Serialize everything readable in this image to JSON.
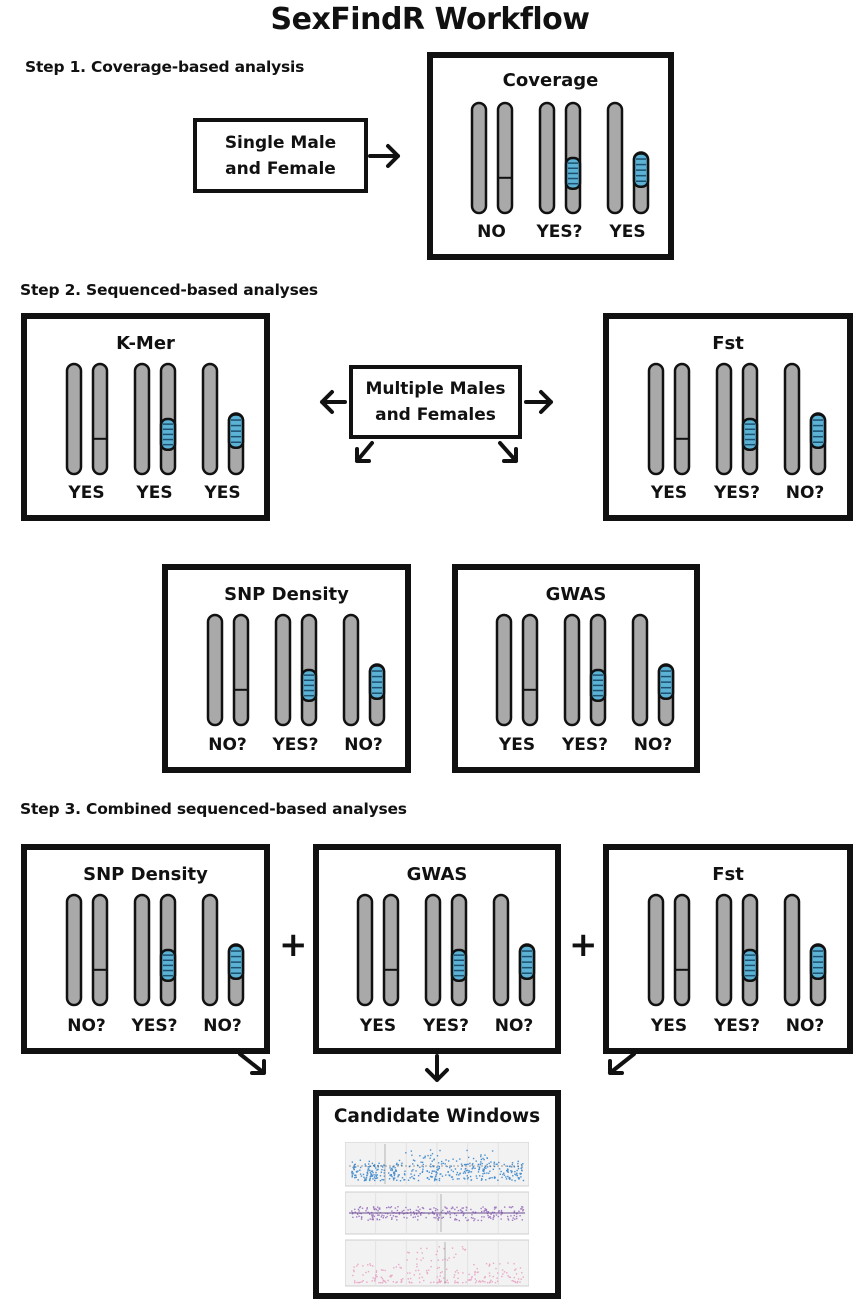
{
  "title": "SexFindR Workflow",
  "steps": {
    "step1": "Step 1. Coverage-based analysis",
    "step2": "Step 2. Sequenced-based analyses",
    "step3": "Step 3. Combined sequenced-based analyses"
  },
  "inputs": {
    "single": "Single Male and Female",
    "multiple": "Multiple Males and Females"
  },
  "panels": {
    "coverage": {
      "title": "Coverage",
      "verdicts": [
        "NO",
        "YES?",
        "YES"
      ]
    },
    "kmer": {
      "title": "K-Mer",
      "verdicts": [
        "YES",
        "YES",
        "YES"
      ]
    },
    "fst": {
      "title": "Fst",
      "verdicts": [
        "YES",
        "YES?",
        "NO?"
      ]
    },
    "snp": {
      "title": "SNP Density",
      "verdicts": [
        "NO?",
        "YES?",
        "NO?"
      ]
    },
    "gwas": {
      "title": "GWAS",
      "verdicts": [
        "YES",
        "YES?",
        "NO?"
      ]
    },
    "snp2": {
      "title": "SNP Density",
      "verdicts": [
        "NO?",
        "YES?",
        "NO?"
      ]
    },
    "gwas2": {
      "title": "GWAS",
      "verdicts": [
        "YES",
        "YES?",
        "NO?"
      ]
    },
    "fst2": {
      "title": "Fst",
      "verdicts": [
        "YES",
        "YES?",
        "NO?"
      ]
    }
  },
  "combine_symbol": "+",
  "output": {
    "title": "Candidate Windows"
  },
  "colors": {
    "chrom": "#a9a9a9",
    "stroke": "#111111",
    "band": "#5bb2d4",
    "scatter1": "#4a90d0",
    "scatter2": "#a07bc0",
    "scatter3": "#e8a8c8"
  }
}
